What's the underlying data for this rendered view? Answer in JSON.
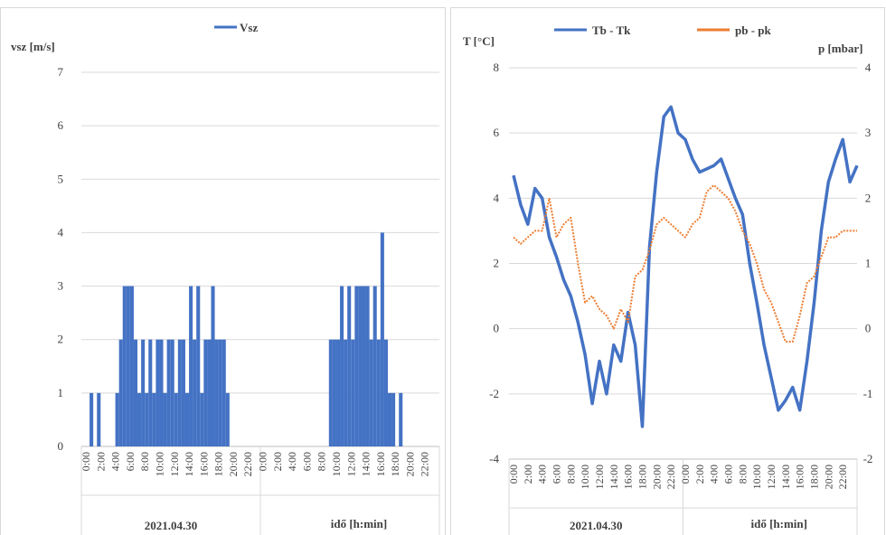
{
  "chart_data": [
    {
      "type": "area",
      "legend": "Vsz",
      "color": "#4472c4",
      "ylabel": "vsz [m/s]",
      "xlabel": "idő [h:min]",
      "group_label": "2021.04.30",
      "xlim": [
        0,
        48
      ],
      "ylim": [
        0,
        7
      ],
      "yticks": [
        0,
        1,
        2,
        3,
        4,
        5,
        6,
        7
      ],
      "grid": true,
      "xticks": [
        {
          "value": 0,
          "label": "0:00"
        },
        {
          "value": 2,
          "label": "2:00"
        },
        {
          "value": 4,
          "label": "4:00"
        },
        {
          "value": 6,
          "label": "6:00"
        },
        {
          "value": 8,
          "label": "8:00"
        },
        {
          "value": 10,
          "label": "10:00"
        },
        {
          "value": 12,
          "label": "12:00"
        },
        {
          "value": 14,
          "label": "14:00"
        },
        {
          "value": 16,
          "label": "16:00"
        },
        {
          "value": 18,
          "label": "18:00"
        },
        {
          "value": 20,
          "label": "20:00"
        },
        {
          "value": 22,
          "label": "22:00"
        },
        {
          "value": 24,
          "label": "0:00"
        },
        {
          "value": 26,
          "label": "2:00"
        },
        {
          "value": 28,
          "label": "4:00"
        },
        {
          "value": 30,
          "label": "6:00"
        },
        {
          "value": 32,
          "label": "8:00"
        },
        {
          "value": 34,
          "label": "10:00"
        },
        {
          "value": 36,
          "label": "12:00"
        },
        {
          "value": 38,
          "label": "14:00"
        },
        {
          "value": 40,
          "label": "16:00"
        },
        {
          "value": 42,
          "label": "18:00"
        },
        {
          "value": 44,
          "label": "20:00"
        },
        {
          "value": 46,
          "label": "22:00"
        }
      ],
      "x": [
        0,
        0.5,
        1,
        1.5,
        2,
        2.5,
        3,
        3.5,
        4,
        4.5,
        5,
        5.5,
        6,
        6.5,
        7,
        7.5,
        8,
        8.5,
        9,
        9.5,
        10,
        10.5,
        11,
        11.5,
        12,
        12.5,
        13,
        13.5,
        14,
        14.5,
        15,
        15.5,
        16,
        16.5,
        17,
        17.5,
        18,
        18.5,
        19,
        19.5,
        20,
        20.5,
        21,
        21.5,
        22,
        22.5,
        23,
        23.5,
        24,
        24.5,
        25,
        25.5,
        26,
        26.5,
        27,
        27.5,
        28,
        28.5,
        29,
        29.5,
        30,
        30.5,
        31,
        31.5,
        32,
        32.5,
        33,
        33.5,
        34,
        34.5,
        35,
        35.5,
        36,
        36.5,
        37,
        37.5,
        38,
        38.5,
        39,
        39.5,
        40,
        40.5,
        41,
        41.5,
        42,
        42.5,
        43,
        43.5,
        44,
        44.5,
        45,
        45.5,
        46,
        46.5,
        47,
        47.5,
        48
      ],
      "values": [
        0,
        1,
        0,
        1,
        0,
        0,
        0,
        0,
        1,
        2,
        3,
        3,
        3,
        2,
        1,
        2,
        1,
        2,
        1,
        2,
        2,
        1,
        2,
        2,
        1,
        2,
        2,
        1,
        3,
        2,
        3,
        1,
        2,
        2,
        3,
        2,
        2,
        2,
        1,
        0,
        0,
        0,
        0,
        0,
        0,
        0,
        0,
        0,
        0,
        0,
        0,
        0,
        0,
        0,
        0,
        0,
        0,
        0,
        0,
        0,
        0,
        0,
        0,
        0,
        0,
        0,
        2,
        2,
        2,
        3,
        2,
        3,
        2,
        3,
        3,
        3,
        3,
        2,
        3,
        2,
        4,
        2,
        1,
        1,
        0,
        1,
        0,
        0,
        0,
        0,
        0,
        0,
        0,
        0,
        0,
        0,
        0
      ]
    },
    {
      "type": "line",
      "ylabel": "T [°C]",
      "y2label": "p  [mbar]",
      "xlabel": "idő [h:min]",
      "group_label": "2021.04.30",
      "xlim": [
        0,
        48
      ],
      "ylim": [
        -4,
        8
      ],
      "yticks": [
        -4,
        -2,
        0,
        2,
        4,
        6,
        8
      ],
      "y2lim": [
        -2,
        4
      ],
      "y2ticks": [
        -2,
        -1,
        0,
        1,
        2,
        3,
        4
      ],
      "grid": true,
      "xticks": [
        {
          "value": 0,
          "label": "0:00"
        },
        {
          "value": 2,
          "label": "2:00"
        },
        {
          "value": 4,
          "label": "4:00"
        },
        {
          "value": 6,
          "label": "6:00"
        },
        {
          "value": 8,
          "label": "8:00"
        },
        {
          "value": 10,
          "label": "10:00"
        },
        {
          "value": 12,
          "label": "12:00"
        },
        {
          "value": 14,
          "label": "14:00"
        },
        {
          "value": 16,
          "label": "16:00"
        },
        {
          "value": 18,
          "label": "18:00"
        },
        {
          "value": 20,
          "label": "20:00"
        },
        {
          "value": 22,
          "label": "22:00"
        },
        {
          "value": 24,
          "label": "0:00"
        },
        {
          "value": 26,
          "label": "2:00"
        },
        {
          "value": 28,
          "label": "4:00"
        },
        {
          "value": 30,
          "label": "6:00"
        },
        {
          "value": 32,
          "label": "8:00"
        },
        {
          "value": 34,
          "label": "10:00"
        },
        {
          "value": 36,
          "label": "12:00"
        },
        {
          "value": 38,
          "label": "14:00"
        },
        {
          "value": 40,
          "label": "16:00"
        },
        {
          "value": 42,
          "label": "18:00"
        },
        {
          "value": 44,
          "label": "20:00"
        },
        {
          "value": 46,
          "label": "22:00"
        }
      ],
      "x": [
        0,
        1,
        2,
        3,
        4,
        5,
        6,
        7,
        8,
        9,
        10,
        11,
        12,
        13,
        14,
        15,
        16,
        17,
        18,
        19,
        20,
        21,
        22,
        23,
        24,
        25,
        26,
        27,
        28,
        29,
        30,
        31,
        32,
        33,
        34,
        35,
        36,
        37,
        38,
        39,
        40,
        41,
        42,
        43,
        44,
        45,
        46,
        47,
        48
      ],
      "series": [
        {
          "name": "Tb - Tk",
          "color": "#4472c4",
          "values": [
            4.7,
            3.8,
            3.2,
            4.3,
            4.0,
            2.8,
            2.2,
            1.5,
            1.0,
            0.2,
            -0.8,
            -2.3,
            -1.0,
            -2.0,
            -0.5,
            -1.0,
            0.5,
            -0.5,
            -3.0,
            2.5,
            4.8,
            6.5,
            6.8,
            6.0,
            5.8,
            5.2,
            4.8,
            4.9,
            5.0,
            5.2,
            4.6,
            4.0,
            3.5,
            2.0,
            0.8,
            -0.5,
            -1.5,
            -2.5,
            -2.2,
            -1.8,
            -2.5,
            -1.0,
            0.8,
            3.0,
            4.5,
            5.2,
            5.8,
            4.5,
            5.0
          ]
        },
        {
          "name": "pb - pk",
          "color": "#ed7d31",
          "axis": "y2",
          "values": [
            1.4,
            1.3,
            1.4,
            1.5,
            1.5,
            2.0,
            1.4,
            1.6,
            1.7,
            1.0,
            0.4,
            0.5,
            0.3,
            0.2,
            0.0,
            0.3,
            0.1,
            0.8,
            0.9,
            1.2,
            1.6,
            1.7,
            1.6,
            1.5,
            1.4,
            1.6,
            1.7,
            2.1,
            2.2,
            2.1,
            2.0,
            1.8,
            1.5,
            1.3,
            1.0,
            0.6,
            0.4,
            0.1,
            -0.2,
            -0.2,
            0.2,
            0.7,
            0.8,
            1.1,
            1.4,
            1.4,
            1.5,
            1.5,
            1.5
          ]
        }
      ]
    }
  ]
}
